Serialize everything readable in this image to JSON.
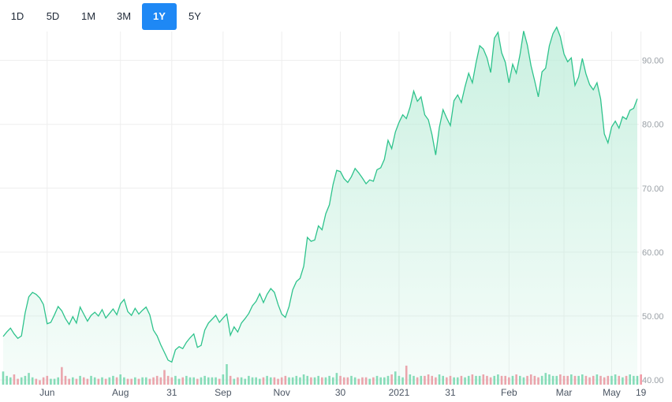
{
  "range_selector": {
    "buttons": [
      "1D",
      "5D",
      "1M",
      "3M",
      "1Y",
      "5Y"
    ],
    "active": "1Y",
    "active_color": "#1e88f5"
  },
  "colors": {
    "line": "#2ec38c",
    "area_top": "#b9ecd7",
    "volume_up": "#7fd9b4",
    "volume_down": "#f29aa6",
    "grid": "#eeeeee"
  },
  "chart_data": {
    "type": "area",
    "ylim": [
      40,
      96
    ],
    "y_ticks": [
      "40.00",
      "50.00",
      "60.00",
      "70.00",
      "80.00",
      "90.00"
    ],
    "x_tick_labels": [
      "Jun",
      "Aug",
      "31",
      "Sep",
      "Nov",
      "30",
      "2021",
      "31",
      "Feb",
      "Mar",
      "May",
      "19"
    ],
    "x_tick_index": [
      12,
      32,
      46,
      60,
      76,
      92,
      108,
      122,
      138,
      153,
      166,
      174
    ],
    "price": [
      46.8,
      47.5,
      48.1,
      47.2,
      46.5,
      46.9,
      50.5,
      53.0,
      53.7,
      53.4,
      52.8,
      51.8,
      48.8,
      49.0,
      50.2,
      51.5,
      50.8,
      49.6,
      48.7,
      49.9,
      48.9,
      51.4,
      50.3,
      49.2,
      50.1,
      50.6,
      50.0,
      51.0,
      49.7,
      50.4,
      51.1,
      50.2,
      51.9,
      52.6,
      50.7,
      50.1,
      51.2,
      50.3,
      50.9,
      51.4,
      50.2,
      47.8,
      46.9,
      45.5,
      44.3,
      43.1,
      42.8,
      44.7,
      45.2,
      44.9,
      45.9,
      46.6,
      47.2,
      45.1,
      45.4,
      47.8,
      48.9,
      49.5,
      50.1,
      49.0,
      49.7,
      50.3,
      47.0,
      48.3,
      47.5,
      48.9,
      49.6,
      50.4,
      51.6,
      52.3,
      53.5,
      52.1,
      53.4,
      54.3,
      53.7,
      51.8,
      50.3,
      49.8,
      51.5,
      54.1,
      55.4,
      55.9,
      57.8,
      62.3,
      61.7,
      61.9,
      64.1,
      63.5,
      66.0,
      67.4,
      70.6,
      72.8,
      72.6,
      71.5,
      70.9,
      71.8,
      73.1,
      72.4,
      71.6,
      70.7,
      71.3,
      71.1,
      72.9,
      73.2,
      74.5,
      77.5,
      76.2,
      78.8,
      80.3,
      81.5,
      80.9,
      82.7,
      85.2,
      83.6,
      84.3,
      81.5,
      80.7,
      78.4,
      75.2,
      79.5,
      82.3,
      81.0,
      79.8,
      83.7,
      84.6,
      83.4,
      85.9,
      88.0,
      86.5,
      89.6,
      92.3,
      91.8,
      90.4,
      88.1,
      93.5,
      94.4,
      91.2,
      89.7,
      86.5,
      89.4,
      88.0,
      90.9,
      94.6,
      92.4,
      89.2,
      86.8,
      84.3,
      88.2,
      88.8,
      92.3,
      94.2,
      95.2,
      93.7,
      91.0,
      89.8,
      90.4,
      86.1,
      87.4,
      90.3,
      87.9,
      86.2,
      85.4,
      86.5,
      84.0,
      78.5,
      77.1,
      79.6,
      80.5,
      79.4,
      81.2,
      80.8,
      82.2,
      82.5,
      84.0
    ],
    "volume": [
      0.9,
      0.6,
      0.5,
      0.7,
      0.4,
      0.5,
      0.6,
      0.8,
      0.5,
      0.4,
      0.3,
      0.5,
      0.6,
      0.4,
      0.4,
      0.5,
      1.2,
      0.6,
      0.4,
      0.5,
      0.4,
      0.6,
      0.5,
      0.4,
      0.6,
      0.5,
      0.4,
      0.5,
      0.4,
      0.5,
      0.6,
      0.5,
      0.7,
      0.5,
      0.4,
      0.4,
      0.5,
      0.4,
      0.5,
      0.5,
      0.4,
      0.5,
      0.6,
      0.5,
      1.0,
      0.6,
      0.5,
      0.6,
      0.4,
      0.5,
      0.6,
      0.5,
      0.5,
      0.4,
      0.5,
      0.6,
      0.5,
      0.5,
      0.5,
      0.4,
      0.7,
      1.4,
      0.6,
      0.4,
      0.5,
      0.5,
      0.4,
      0.6,
      0.5,
      0.5,
      0.4,
      0.5,
      0.6,
      0.5,
      0.5,
      0.4,
      0.5,
      0.6,
      0.5,
      0.5,
      0.6,
      0.5,
      0.7,
      0.6,
      0.5,
      0.5,
      0.6,
      0.5,
      0.5,
      0.6,
      0.5,
      0.8,
      0.6,
      0.5,
      0.5,
      0.6,
      0.5,
      0.4,
      0.5,
      0.5,
      0.4,
      0.5,
      0.6,
      0.5,
      0.5,
      0.6,
      0.7,
      0.9,
      0.6,
      0.5,
      1.3,
      0.7,
      0.6,
      0.5,
      0.6,
      0.6,
      0.7,
      0.6,
      0.5,
      0.7,
      0.6,
      0.5,
      0.6,
      0.5,
      0.5,
      0.6,
      0.5,
      0.6,
      0.7,
      0.6,
      0.6,
      0.7,
      0.6,
      0.5,
      0.6,
      0.7,
      0.6,
      0.6,
      0.5,
      0.6,
      0.7,
      0.6,
      0.5,
      0.6,
      0.7,
      0.6,
      0.5,
      0.6,
      0.8,
      0.7,
      0.6,
      0.6,
      0.7,
      0.6,
      0.6,
      0.7,
      0.6,
      0.6,
      0.7,
      0.6,
      0.5,
      0.6,
      0.7,
      0.6,
      0.5,
      0.6,
      0.6,
      0.7,
      0.6,
      0.5,
      0.6,
      0.7,
      0.6,
      0.6,
      0.7
    ]
  }
}
